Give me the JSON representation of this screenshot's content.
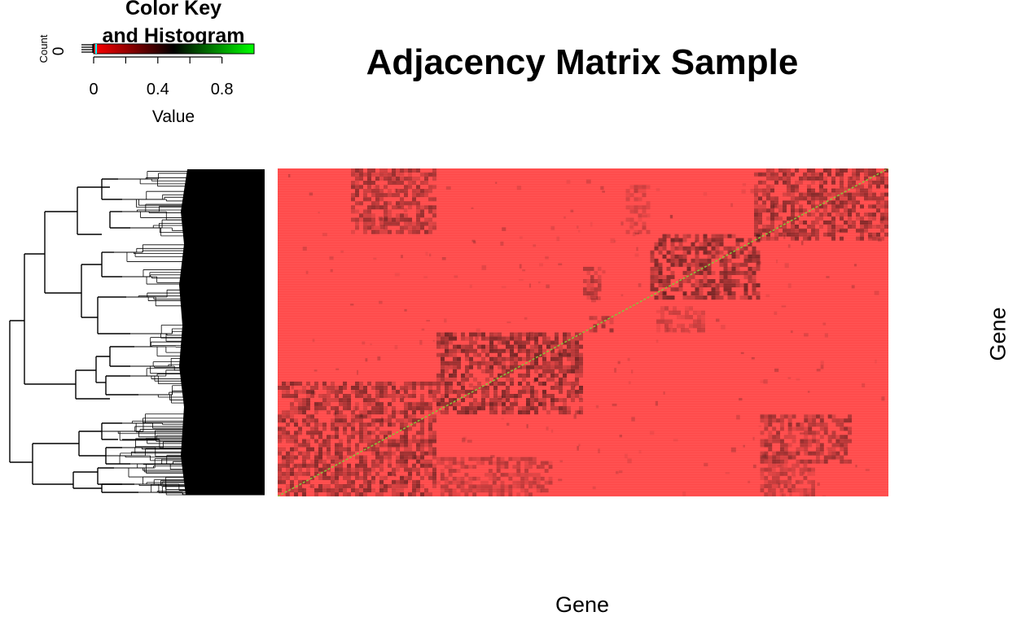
{
  "chart_data": {
    "type": "heatmap",
    "title": "Adjacency Matrix Sample",
    "xlabel": "Gene",
    "ylabel": "Gene",
    "color_key": {
      "title_line1": "Color Key",
      "title_line2": "and Histogram",
      "xlabel": "Value",
      "ylabel": "Count",
      "y_tick": "0",
      "x_ticks": [
        "0",
        "0.4",
        "0.8"
      ],
      "x_tick_values": [
        0,
        0.4,
        0.8
      ],
      "range": [
        0,
        1
      ],
      "colors": {
        "low": "#ff0000",
        "mid": "#000000",
        "high": "#00ff00"
      },
      "histogram_line_color": "#00ffff"
    },
    "cell_color": "#ff4a4a",
    "diagonal_color": "#8dbf3a",
    "cluster_blocks": [
      {
        "rows": [
          0.0,
          0.2
        ],
        "cols": [
          0.12,
          0.26
        ],
        "value": 0.35
      },
      {
        "rows": [
          0.0,
          0.22
        ],
        "cols": [
          0.78,
          1.0
        ],
        "value": 0.4
      },
      {
        "rows": [
          0.2,
          0.4
        ],
        "cols": [
          0.61,
          0.79
        ],
        "value": 0.45
      },
      {
        "rows": [
          0.3,
          0.4
        ],
        "cols": [
          0.5,
          0.53
        ],
        "value": 0.3
      },
      {
        "rows": [
          0.45,
          0.5
        ],
        "cols": [
          0.51,
          0.55
        ],
        "value": 0.35
      },
      {
        "rows": [
          0.5,
          0.75
        ],
        "cols": [
          0.26,
          0.5
        ],
        "value": 0.45
      },
      {
        "rows": [
          0.65,
          1.0
        ],
        "cols": [
          0.0,
          0.26
        ],
        "value": 0.4
      },
      {
        "rows": [
          0.75,
          0.9
        ],
        "cols": [
          0.79,
          0.94
        ],
        "value": 0.35
      },
      {
        "rows": [
          0.88,
          1.0
        ],
        "cols": [
          0.26,
          0.45
        ],
        "value": 0.25
      },
      {
        "rows": [
          0.9,
          1.0
        ],
        "cols": [
          0.79,
          0.88
        ],
        "value": 0.25
      },
      {
        "rows": [
          0.05,
          0.2
        ],
        "cols": [
          0.57,
          0.61
        ],
        "value": 0.2
      },
      {
        "rows": [
          0.42,
          0.5
        ],
        "cols": [
          0.62,
          0.7
        ],
        "value": 0.2
      }
    ]
  }
}
